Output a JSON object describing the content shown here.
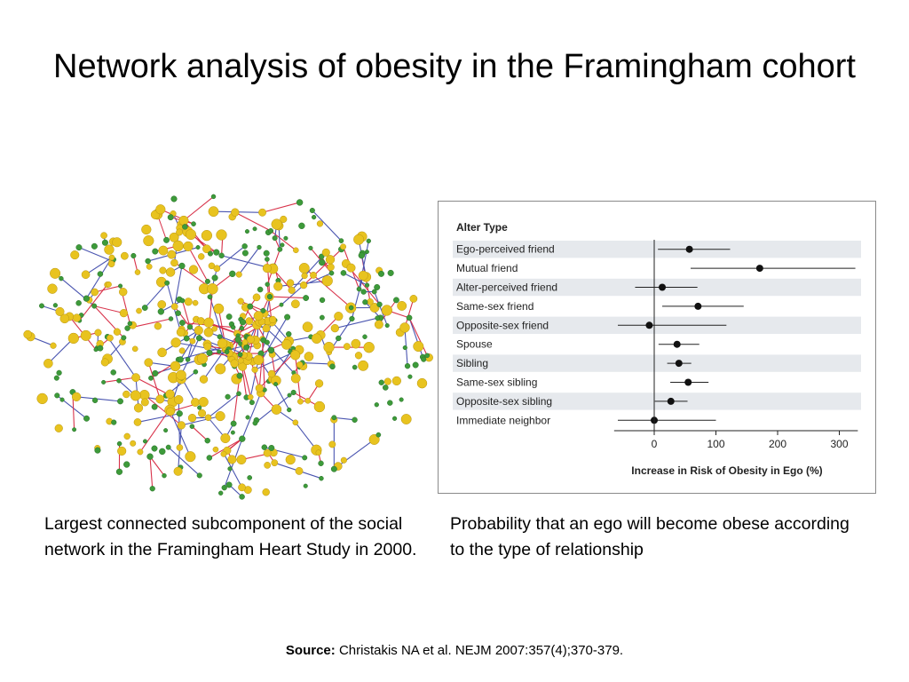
{
  "title": "Network analysis of obesity in the Framingham cohort",
  "captions": {
    "left": "Largest connected subcomponent of the social network in the Framingham Heart Study in 2000.",
    "right": "Probability that an ego will become obese according to the type of relationship"
  },
  "source": {
    "label": "Source:",
    "text": "Christakis NA et al. NEJM 2007:357(4);370-379."
  },
  "network": {
    "colors": {
      "yellow": "#e8c31f",
      "green": "#3d9a3a",
      "red": "#d8324a",
      "blue": "#4a55b0"
    }
  },
  "chart_data": {
    "type": "scatter",
    "variant": "forest-plot",
    "row_header": "Alter Type",
    "xlabel": "Increase in Risk of Obesity in Ego (%)",
    "xlim": [
      -65,
      330
    ],
    "xticks": [
      0,
      100,
      200,
      300
    ],
    "reference_line": 0,
    "rows": [
      {
        "label": "Ego-perceived friend",
        "estimate": 57,
        "low": 6,
        "high": 123
      },
      {
        "label": "Mutual friend",
        "estimate": 171,
        "low": 59,
        "high": 326
      },
      {
        "label": "Alter-perceived friend",
        "estimate": 13,
        "low": -31,
        "high": 70
      },
      {
        "label": "Same-sex friend",
        "estimate": 71,
        "low": 13,
        "high": 145
      },
      {
        "label": "Opposite-sex friend",
        "estimate": -8,
        "low": -59,
        "high": 117
      },
      {
        "label": "Spouse",
        "estimate": 37,
        "low": 7,
        "high": 73
      },
      {
        "label": "Sibling",
        "estimate": 40,
        "low": 21,
        "high": 60
      },
      {
        "label": "Same-sex sibling",
        "estimate": 55,
        "low": 26,
        "high": 88
      },
      {
        "label": "Opposite-sex sibling",
        "estimate": 27,
        "low": 1,
        "high": 54
      },
      {
        "label": "Immediate neighbor",
        "estimate": 0,
        "low": -59,
        "high": 100
      }
    ]
  }
}
